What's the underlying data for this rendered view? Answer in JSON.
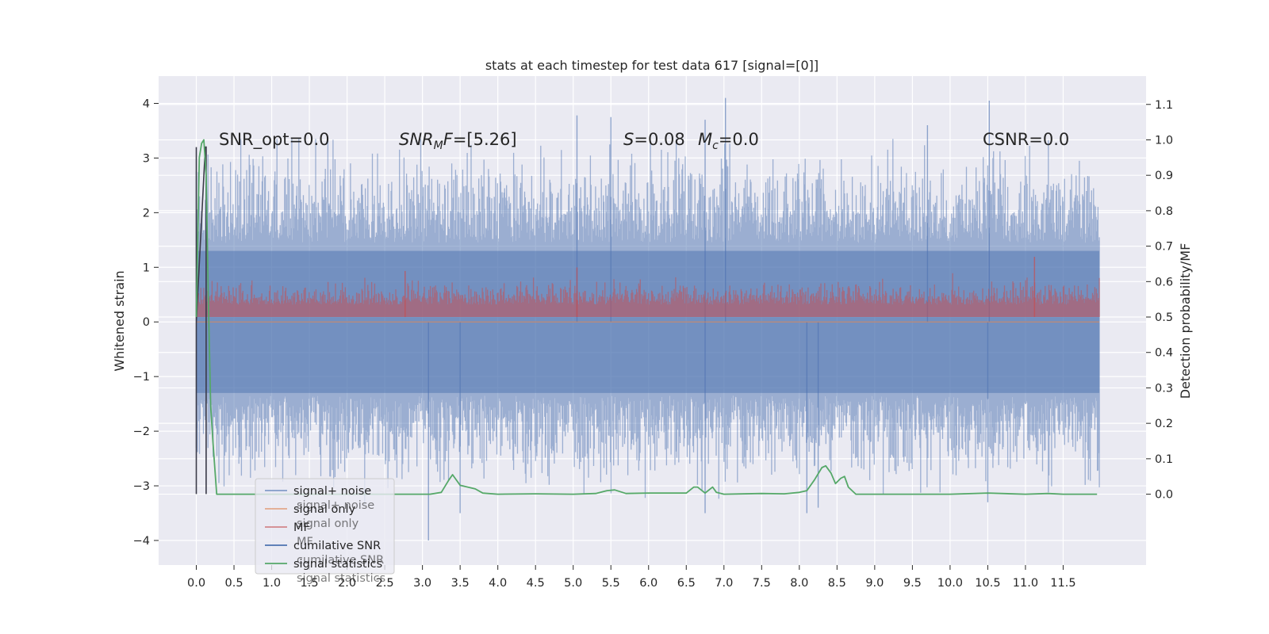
{
  "chart_data": {
    "type": "line",
    "title": "stats at each timestep for test data 617 [signal=[0]]",
    "xlabel": "",
    "ylabel": "Whitened strain",
    "y2label": "Detection probability/MF",
    "xlim": [
      -0.5,
      12.6
    ],
    "ylim": [
      -4.45,
      4.5
    ],
    "y2lim": [
      -0.2,
      1.18
    ],
    "x_ticks": [
      "0.0",
      "0.5",
      "1.0",
      "1.5",
      "2.0",
      "2.5",
      "3.0",
      "3.5",
      "4.0",
      "4.5",
      "5.0",
      "5.5",
      "6.0",
      "6.5",
      "7.0",
      "7.5",
      "8.0",
      "8.5",
      "9.0",
      "9.5",
      "10.0",
      "10.5",
      "11.0",
      "11.5"
    ],
    "y_ticks": [
      "4",
      "3",
      "2",
      "1",
      "0",
      "−1",
      "−2",
      "−3",
      "−4"
    ],
    "y2_ticks": [
      "1.1",
      "1.0",
      "0.9",
      "0.8",
      "0.7",
      "0.6",
      "0.5",
      "0.4",
      "0.3",
      "0.2",
      "0.1",
      "0.0"
    ],
    "grid": true,
    "legend_position": "lower-left",
    "annotations": [
      "SNR_opt=0.0",
      "SNR_MF=[5.26]",
      "S=0.08",
      "M_c=0.0",
      "CSNR=0.0"
    ],
    "colors": {
      "background": "#eaeaf2",
      "grid": "#ffffff",
      "signal_noise": "#4c72b0",
      "signal_only": "#dd8452",
      "mf": "#c44e52",
      "cumulative_snr": "#4c72b0",
      "signal_statistics": "#55a868"
    },
    "series": [
      {
        "name": "signal+ noise",
        "axis": "left",
        "style": "dense noise band",
        "x_range": [
          0.0,
          11.98
        ],
        "envelope_typical": [
          -2.0,
          2.7
        ],
        "spikes": [
          {
            "x": 7.02,
            "y": 4.1
          },
          {
            "x": 10.52,
            "y": 4.05
          },
          {
            "x": 5.05,
            "y": 3.78
          },
          {
            "x": 5.5,
            "y": 3.75
          },
          {
            "x": 6.75,
            "y": 3.7
          },
          {
            "x": 9.7,
            "y": 3.6
          },
          {
            "x": 3.08,
            "y": -4.0
          },
          {
            "x": 3.5,
            "y": -3.5
          },
          {
            "x": 6.75,
            "y": -3.5
          },
          {
            "x": 8.1,
            "y": -3.5
          },
          {
            "x": 8.25,
            "y": -3.4
          },
          {
            "x": 10.5,
            "y": -3.3
          }
        ]
      },
      {
        "name": "signal only",
        "axis": "left",
        "x": [
          0.0,
          11.98
        ],
        "y": [
          0.0,
          0.0
        ]
      },
      {
        "name": "MF",
        "axis": "right",
        "style": "dense band",
        "x_range": [
          0.0,
          11.98
        ],
        "baseline": 0.5,
        "typical_high": 0.58,
        "peaks": [
          {
            "x": 11.12,
            "y": 0.67
          },
          {
            "x": 5.05,
            "y": 0.64
          },
          {
            "x": 2.77,
            "y": 0.63
          }
        ]
      },
      {
        "name": "cumilative SNR",
        "axis": "left",
        "x": [
          0.0,
          0.0,
          0.0,
          0.12,
          0.13,
          0.13
        ],
        "y": [
          3.2,
          -3.15,
          0.0,
          3.2,
          3.2,
          -3.15
        ]
      },
      {
        "name": "signal statistics",
        "axis": "right",
        "x": [
          0.0,
          0.04,
          0.07,
          0.1,
          0.13,
          0.16,
          0.19,
          0.22,
          0.27,
          0.35,
          0.5,
          1.0,
          2.0,
          2.5,
          2.9,
          3.1,
          3.25,
          3.35,
          3.4,
          3.5,
          3.7,
          3.8,
          4.0,
          4.5,
          5.0,
          5.3,
          5.45,
          5.55,
          5.7,
          6.0,
          6.5,
          6.6,
          6.65,
          6.75,
          6.85,
          6.9,
          7.0,
          7.5,
          7.8,
          8.0,
          8.1,
          8.2,
          8.3,
          8.35,
          8.42,
          8.48,
          8.55,
          8.6,
          8.65,
          8.75,
          9.0,
          9.5,
          10.0,
          10.5,
          11.0,
          11.3,
          11.5,
          11.95
        ],
        "y": [
          0.5,
          0.95,
          0.99,
          1.0,
          0.9,
          0.55,
          0.25,
          0.15,
          0.0,
          0.0,
          0.0,
          0.0,
          0.0,
          0.0,
          0.0,
          0.0,
          0.005,
          0.04,
          0.055,
          0.025,
          0.015,
          0.003,
          0.0,
          0.001,
          0.0,
          0.002,
          0.01,
          0.012,
          0.002,
          0.003,
          0.003,
          0.02,
          0.02,
          0.003,
          0.02,
          0.005,
          0.0,
          0.002,
          0.001,
          0.005,
          0.01,
          0.04,
          0.075,
          0.08,
          0.06,
          0.03,
          0.045,
          0.05,
          0.02,
          0.0,
          0.0,
          0.0,
          0.0,
          0.003,
          0.0,
          0.002,
          0.0,
          0.0
        ]
      }
    ]
  },
  "legend": {
    "items": [
      {
        "label": "signal+ noise",
        "color": "#4c72b0"
      },
      {
        "label": "signal only",
        "color": "#dd8452"
      },
      {
        "label": "MF",
        "color": "#c44e52"
      },
      {
        "label": "cumilative SNR",
        "color": "#4c72b0"
      },
      {
        "label": "signal statistics",
        "color": "#55a868"
      }
    ],
    "ghost_items": [
      "signal+ noise",
      "signal only",
      "MF",
      "cumilative SNR",
      "signal statistics"
    ]
  }
}
